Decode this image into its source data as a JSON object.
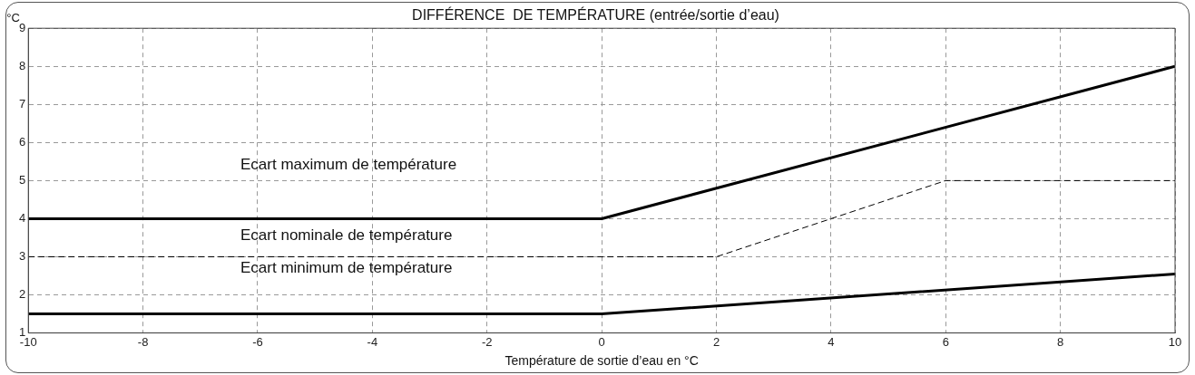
{
  "chart_data": {
    "type": "line",
    "title": "DIFFÉRENCE  DE TEMPÉRATURE (entrée/sortie d’eau)",
    "xlabel": "Température de sortie d’eau en °C",
    "ylabel": "°C",
    "xlim": [
      -10,
      10
    ],
    "xticks": [
      -10,
      -8,
      -6,
      -4,
      -2,
      0,
      2,
      4,
      6,
      8,
      10
    ],
    "ylim": [
      1,
      9
    ],
    "yticks": [
      1,
      2,
      3,
      4,
      5,
      6,
      7,
      8,
      9
    ],
    "grid": true,
    "legend": false,
    "marker": "none",
    "series": [
      {
        "x": [
          -10,
          0,
          10
        ],
        "values": [
          4,
          4,
          8
        ],
        "color": "#000000",
        "line_style": "solid"
      },
      {
        "x": [
          -10,
          2,
          6,
          10
        ],
        "values": [
          3,
          3,
          5,
          5
        ],
        "color": "#000000",
        "line_style": "dashed"
      },
      {
        "x": [
          -10,
          0,
          10
        ],
        "values": [
          1.5,
          1.5,
          2.55
        ],
        "color": "#000000",
        "line_style": "solid"
      }
    ],
    "annotations": [
      "Ecart maximum de température",
      "Ecart nominale de température",
      "Ecart minimum de température"
    ]
  }
}
